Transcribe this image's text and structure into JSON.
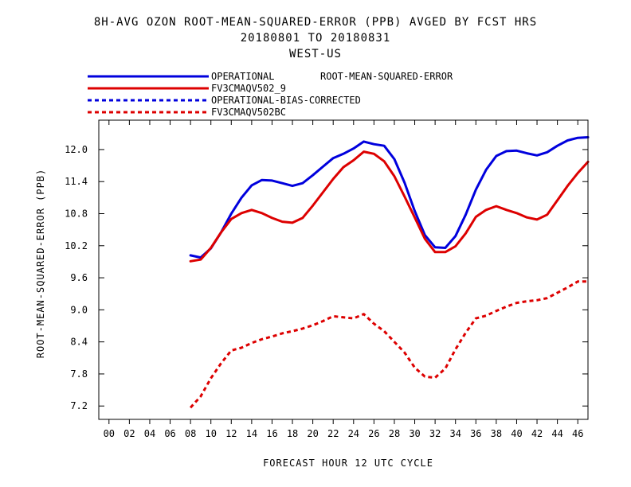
{
  "title_lines": [
    "8H-AVG OZON ROOT-MEAN-SQUARED-ERROR (PPB)  AVGED BY FCST HRS",
    "20180801 TO 20180831",
    "WEST-US"
  ],
  "chart_data": {
    "type": "line",
    "title": "8H-AVG OZON ROOT-MEAN-SQUARED-ERROR (PPB)  AVGED BY FCST HRS",
    "subtitle": "20180801 TO 20180831",
    "region": "WEST-US",
    "xlabel": "FORECAST HOUR  12 UTC CYCLE",
    "ylabel": "ROOT-MEAN-SQUARED-ERROR (PPB)",
    "legend_note": "ROOT-MEAN-SQUARED-ERROR",
    "xlim": [
      -1,
      47
    ],
    "ylim": [
      6.95,
      12.55
    ],
    "x_ticks": [
      "00",
      "02",
      "04",
      "06",
      "08",
      "10",
      "12",
      "14",
      "16",
      "18",
      "20",
      "22",
      "24",
      "26",
      "28",
      "30",
      "32",
      "34",
      "36",
      "38",
      "40",
      "42",
      "44",
      "46"
    ],
    "y_ticks": [
      7.2,
      7.8,
      8.4,
      9.0,
      9.6,
      10.2,
      10.8,
      11.4,
      12.0
    ],
    "grid": false,
    "legend_position": "top-left",
    "series": [
      {
        "name": "OPERATIONAL",
        "color": "#0000dd",
        "dash": "solid",
        "x": [
          8,
          9,
          10,
          11,
          12,
          13,
          14,
          15,
          16,
          17,
          18,
          19,
          20,
          21,
          22,
          23,
          24,
          25,
          26,
          27,
          28,
          29,
          30,
          31,
          32,
          33,
          34,
          35,
          36,
          37,
          38,
          39,
          40,
          41,
          42,
          43,
          44,
          45,
          46,
          47
        ],
        "y": [
          10.02,
          9.98,
          10.15,
          10.45,
          10.8,
          11.1,
          11.33,
          11.43,
          11.42,
          11.37,
          11.32,
          11.37,
          11.52,
          11.68,
          11.84,
          11.92,
          12.02,
          12.15,
          12.1,
          12.07,
          11.82,
          11.38,
          10.85,
          10.4,
          10.17,
          10.16,
          10.38,
          10.78,
          11.25,
          11.62,
          11.88,
          11.97,
          11.98,
          11.93,
          11.89,
          11.95,
          12.07,
          12.17,
          12.22,
          12.23
        ]
      },
      {
        "name": "FV3CMAQV502_9",
        "color": "#dd0000",
        "dash": "solid",
        "x": [
          8,
          9,
          10,
          11,
          12,
          13,
          14,
          15,
          16,
          17,
          18,
          19,
          20,
          21,
          22,
          23,
          24,
          25,
          26,
          27,
          28,
          29,
          30,
          31,
          32,
          33,
          34,
          35,
          36,
          37,
          38,
          39,
          40,
          41,
          42,
          43,
          44,
          45,
          46,
          47
        ],
        "y": [
          9.91,
          9.94,
          10.16,
          10.45,
          10.7,
          10.81,
          10.87,
          10.81,
          10.72,
          10.65,
          10.63,
          10.72,
          10.95,
          11.2,
          11.45,
          11.67,
          11.8,
          11.96,
          11.92,
          11.78,
          11.5,
          11.12,
          10.73,
          10.33,
          10.08,
          10.08,
          10.19,
          10.43,
          10.74,
          10.87,
          10.94,
          10.87,
          10.81,
          10.73,
          10.69,
          10.78,
          11.05,
          11.32,
          11.56,
          11.77
        ]
      },
      {
        "name": "OPERATIONAL-BIAS-CORRECTED",
        "color": "#0000dd",
        "dash": "dashed",
        "x": [],
        "y": []
      },
      {
        "name": "FV3CMAQV502BC",
        "color": "#dd0000",
        "dash": "dashed",
        "x": [
          8,
          9,
          10,
          11,
          12,
          13,
          14,
          15,
          16,
          17,
          18,
          19,
          20,
          21,
          22,
          23,
          24,
          25,
          26,
          27,
          28,
          29,
          30,
          31,
          32,
          33,
          34,
          35,
          36,
          37,
          38,
          39,
          40,
          41,
          42,
          43,
          44,
          45,
          46,
          47
        ],
        "y": [
          7.17,
          7.38,
          7.72,
          8.0,
          8.24,
          8.29,
          8.38,
          8.45,
          8.5,
          8.56,
          8.6,
          8.65,
          8.71,
          8.79,
          8.88,
          8.86,
          8.84,
          8.92,
          8.74,
          8.6,
          8.4,
          8.2,
          7.92,
          7.75,
          7.73,
          7.9,
          8.26,
          8.57,
          8.84,
          8.89,
          8.98,
          9.06,
          9.13,
          9.16,
          9.18,
          9.22,
          9.32,
          9.42,
          9.53,
          9.53
        ]
      }
    ]
  }
}
